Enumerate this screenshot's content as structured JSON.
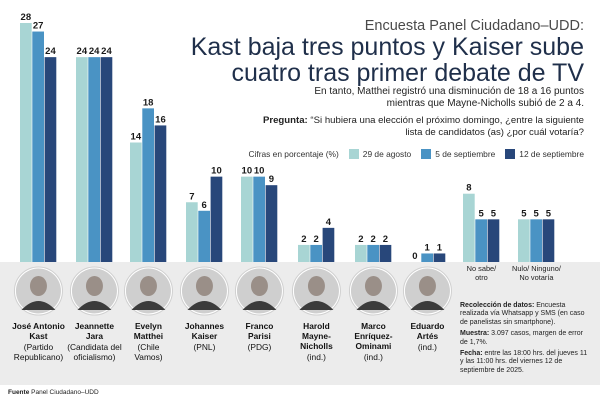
{
  "header": {
    "survey_name": "Encuesta Panel Ciudadano–UDD:",
    "headline": "Kast baja tres puntos y Kaiser sube cuatro tras primer debate de TV",
    "subheadline": "En tanto, Matthei registró una disminución de 18 a 16 puntos mientras que Mayne-Nicholls subió de 2 a 4.",
    "question_label": "Pregunta:",
    "question_text": "“Si hubiera una elección el próximo domingo, ¿entre la siguiente lista de candidatos (as) ¿por cuál votaría?"
  },
  "legend": {
    "title": "Cifras en porcentaje (%)",
    "items": [
      "29 de agosto",
      "5 de septiembre",
      "12 de septiembre"
    ]
  },
  "colors": {
    "series": [
      "#a8d5d4",
      "#4a93c4",
      "#28477a"
    ],
    "photo_band": "#ececec",
    "headline": "#1f2f4a"
  },
  "chart_data": {
    "type": "bar",
    "title": "",
    "xlabel": "",
    "ylabel": "",
    "ylim": [
      0,
      28
    ],
    "categories": [
      "José Antonio Kast (Partido Republicano)",
      "Jeannette Jara (Candidata del oficialismo)",
      "Evelyn Matthei (Chile Vamos)",
      "Johannes Kaiser (PNL)",
      "Franco Parisi (PDG)",
      "Harold Mayne-Nicholls (ind.)",
      "Marco Enríquez-Ominami (ind.)",
      "Eduardo Artés (ind.)",
      "No sabe/ otro",
      "Nulo/ Ninguno/ No votaría"
    ],
    "series": [
      {
        "name": "29 de agosto",
        "values": [
          28,
          24,
          14,
          7,
          10,
          2,
          2,
          0,
          8,
          5
        ]
      },
      {
        "name": "5 de septiembre",
        "values": [
          27,
          24,
          18,
          6,
          10,
          2,
          2,
          1,
          5,
          5
        ]
      },
      {
        "name": "12 de septiembre",
        "values": [
          24,
          24,
          16,
          10,
          9,
          4,
          2,
          1,
          5,
          5
        ]
      }
    ],
    "grid": false,
    "legend_position": "top-right"
  },
  "candidates": [
    {
      "name_lines": [
        "José Antonio",
        "Kast"
      ],
      "party_lines": [
        "(Partido",
        "Republicano)"
      ],
      "photo_icon": "kast-portrait-icon"
    },
    {
      "name_lines": [
        "Jeannette",
        "Jara"
      ],
      "party_lines": [
        "(Candidata del",
        "oficialismo)"
      ],
      "photo_icon": "jara-portrait-icon"
    },
    {
      "name_lines": [
        "Evelyn",
        "Matthei"
      ],
      "party_lines": [
        "(Chile",
        "Vamos)"
      ],
      "photo_icon": "matthei-portrait-icon"
    },
    {
      "name_lines": [
        "Johannes",
        "Kaiser"
      ],
      "party_lines": [
        "(PNL)"
      ],
      "photo_icon": "kaiser-portrait-icon"
    },
    {
      "name_lines": [
        "Franco",
        "Parisi"
      ],
      "party_lines": [
        "(PDG)"
      ],
      "photo_icon": "parisi-portrait-icon"
    },
    {
      "name_lines": [
        "Harold",
        "Mayne-",
        "Nicholls"
      ],
      "party_lines": [
        "(ind.)"
      ],
      "photo_icon": "mayne-nicholls-portrait-icon"
    },
    {
      "name_lines": [
        "Marco",
        "Enríquez-",
        "Ominami"
      ],
      "party_lines": [
        "(ind.)"
      ],
      "photo_icon": "enriquez-ominami-portrait-icon"
    },
    {
      "name_lines": [
        "Eduardo",
        "Artés"
      ],
      "party_lines": [
        "(ind.)"
      ],
      "photo_icon": "artes-portrait-icon"
    }
  ],
  "other_categories": [
    {
      "label_lines": [
        "No sabe/",
        "otro"
      ]
    },
    {
      "label_lines": [
        "Nulo/ Ninguno/",
        "No votaría"
      ]
    }
  ],
  "methodology": {
    "collection_label": "Recolección de datos:",
    "collection_text": "Encuesta realizada vía Whatsapp y SMS (en caso de panelistas sin smartphone).",
    "sample_label": "Muestra:",
    "sample_text": "3.097 casos, margen de error de 1,7%.",
    "date_label": "Fecha:",
    "date_text": "entre las 18:00 hrs. del jueves 11 y las 11:00 hrs. del viernes 12 de septiembre de 2025."
  },
  "source": {
    "label": "Fuente",
    "text": "Panel Ciudadano–UDD"
  }
}
